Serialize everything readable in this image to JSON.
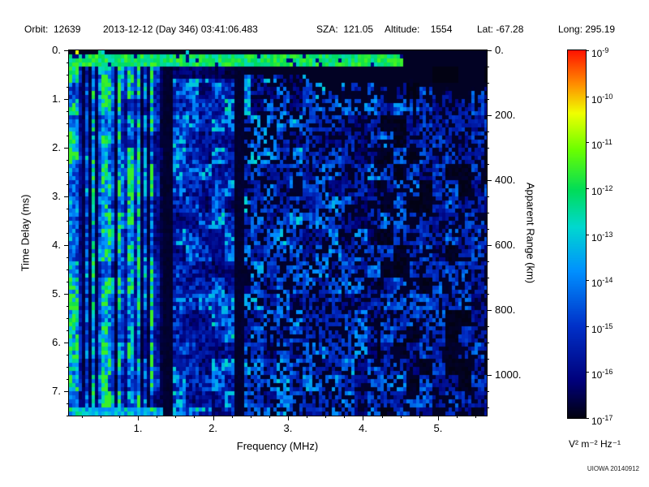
{
  "header": {
    "orbit": "Orbit:  12639",
    "datetime": "2013-12-12 (Day 346) 03:41:06.483",
    "sza": "SZA:  121.05",
    "altitude": "Altitude:    1554",
    "lat": "Lat: -67.28",
    "long": "Long: 295.19"
  },
  "chart_data": {
    "type": "heatmap",
    "title": "",
    "xlabel": "Frequency (MHz)",
    "ylabel": "Time Delay (ms)",
    "y2label": "Apparent Range (km)",
    "xlim": [
      0.08,
      5.65
    ],
    "ylim": [
      0,
      7.5
    ],
    "y_axis_inverted_downward": true,
    "x_ticks": [
      1,
      2,
      3,
      4,
      5
    ],
    "x_tick_labels": [
      "1.",
      "2.",
      "3.",
      "4.",
      "5."
    ],
    "y_ticks": [
      0,
      1,
      2,
      3,
      4,
      5,
      6,
      7
    ],
    "y_tick_labels": [
      "0.",
      "1.",
      "2.",
      "3.",
      "4.",
      "5.",
      "6.",
      "7."
    ],
    "y2_ticks": [
      0,
      200,
      400,
      600,
      800,
      1000
    ],
    "y2_tick_labels": [
      "0.",
      "200.",
      "400.",
      "600.",
      "800.",
      "1000."
    ],
    "range_per_ms": 149.9,
    "colorbar": {
      "unit_label": "V² m⁻² Hz⁻¹",
      "scale": "log10",
      "tick_exponents": [
        -9,
        -10,
        -11,
        -12,
        -13,
        -14,
        -15,
        -16,
        -17
      ],
      "stops": [
        [
          0,
          "#02020e"
        ],
        [
          0.1,
          "#00007a"
        ],
        [
          0.25,
          "#0030c8"
        ],
        [
          0.4,
          "#0090ff"
        ],
        [
          0.52,
          "#00d8d0"
        ],
        [
          0.62,
          "#00dc5a"
        ],
        [
          0.73,
          "#6aff00"
        ],
        [
          0.83,
          "#f0ff00"
        ],
        [
          0.91,
          "#ff8c00"
        ],
        [
          1,
          "#ff1400"
        ]
      ]
    },
    "noise": {
      "seed": 12639,
      "stripe_max_f": 1.32,
      "gaps": [
        [
          1.32,
          1.45
        ],
        [
          2.28,
          2.43
        ]
      ],
      "top_band_t": [
        0.1,
        0.34
      ],
      "description": "AIS radar ionogram: bright cyan/green vertical striping below ~1.3 MHz over full time-delay range; speckled blue noise 1.45-2.28 MHz; dark vertical band 2.28-2.43 MHz; faint blue speckle above 2.43 MHz fading toward 5.6 MHz with black region at small time delays on the right; bright green horizontal band near zero time delay"
    }
  },
  "credit": "UIOWA 20140912"
}
